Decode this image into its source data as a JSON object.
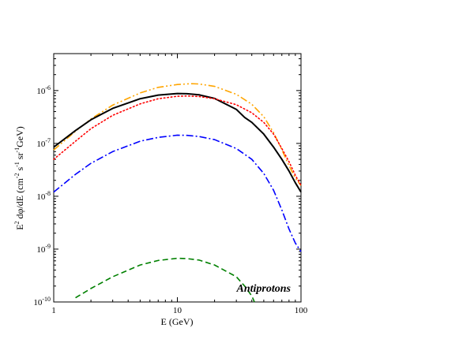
{
  "chart_data": {
    "type": "line",
    "title": "",
    "xlabel": "E (GeV)",
    "ylabel_parts": {
      "a": "E",
      "a_sup": "2",
      "b": " dφ/dE   (cm",
      "b_sup": "-2",
      "c": " s",
      "c_sup": "-1",
      "d": " sr",
      "d_sup": "-1",
      "e": "GeV)"
    },
    "x_scale": "log",
    "y_scale": "log",
    "xlim": [
      1,
      100
    ],
    "ylim": [
      1e-10,
      5e-06
    ],
    "x_ticks": [
      {
        "value": 1,
        "label": "1"
      },
      {
        "value": 10,
        "label": "10"
      },
      {
        "value": 100,
        "label": "100"
      }
    ],
    "y_ticks": [
      {
        "value": 1e-10,
        "base": "10",
        "exp": "-10"
      },
      {
        "value": 1e-09,
        "base": "10",
        "exp": "-9"
      },
      {
        "value": 1e-08,
        "base": "10",
        "exp": "-8"
      },
      {
        "value": 1e-07,
        "base": "10",
        "exp": "-7"
      },
      {
        "value": 1e-06,
        "base": "10",
        "exp": "-6"
      }
    ],
    "grid": false,
    "annotation": "Antiprotons",
    "series": [
      {
        "color": "#ffa500",
        "style": "dash-dot-dot",
        "x": [
          1,
          1.5,
          2,
          3,
          5,
          7,
          10,
          13,
          15,
          20,
          30,
          40,
          50,
          60,
          70,
          80,
          90,
          100
        ],
        "y": [
          7.5e-08,
          1.7e-07,
          2.9e-07,
          5.3e-07,
          9e-07,
          1.15e-06,
          1.3e-06,
          1.35e-06,
          1.33e-06,
          1.2e-06,
          8.5e-07,
          5.5e-07,
          3.2e-07,
          1.6e-07,
          7.6e-08,
          3.8e-08,
          2.2e-08,
          1.6e-08
        ]
      },
      {
        "color": "#000000",
        "style": "solid",
        "x": [
          1,
          1.5,
          2,
          3,
          5,
          7,
          10,
          12,
          15,
          20,
          30,
          35,
          40,
          50,
          60,
          70,
          80,
          90,
          100
        ],
        "y": [
          8.5e-08,
          1.75e-07,
          2.8e-07,
          4.6e-07,
          7e-07,
          8.2e-07,
          8.8e-07,
          8.7e-07,
          8.3e-07,
          7.1e-07,
          4.4e-07,
          3.1e-07,
          2.5e-07,
          1.5e-07,
          8.5e-08,
          5e-08,
          3e-08,
          1.8e-08,
          1.2e-08
        ]
      },
      {
        "color": "#ff0000",
        "style": "dotted",
        "x": [
          1,
          1.5,
          2,
          3,
          5,
          7,
          10,
          12,
          15,
          20,
          30,
          40,
          50,
          60,
          70,
          80,
          90,
          100
        ],
        "y": [
          5e-08,
          1.1e-07,
          1.9e-07,
          3.4e-07,
          5.6e-07,
          7e-07,
          7.8e-07,
          7.9e-07,
          7.7e-07,
          7e-07,
          5.4e-07,
          3.8e-07,
          2.5e-07,
          1.5e-07,
          8e-08,
          4.5e-08,
          2.5e-08,
          1.6e-08
        ]
      },
      {
        "color": "#0000ff",
        "style": "dash-dot",
        "x": [
          1,
          1.5,
          2,
          3,
          5,
          7,
          10,
          12,
          15,
          20,
          30,
          40,
          50,
          60,
          70,
          80,
          90,
          100
        ],
        "y": [
          1.2e-08,
          2.6e-08,
          4.2e-08,
          7e-08,
          1.1e-07,
          1.3e-07,
          1.43e-07,
          1.42e-07,
          1.35e-07,
          1.18e-07,
          8e-08,
          5e-08,
          2.7e-08,
          1.3e-08,
          5.5e-09,
          2.4e-09,
          1.3e-09,
          9e-10
        ]
      },
      {
        "color": "#008000",
        "style": "dashed",
        "x": [
          1.5,
          2,
          3,
          5,
          7,
          10,
          12,
          15,
          20,
          30,
          35,
          40,
          42
        ],
        "y": [
          1.2e-10,
          1.8e-10,
          3e-10,
          5e-10,
          6.1e-10,
          6.7e-10,
          6.6e-10,
          6.2e-10,
          5e-10,
          3e-10,
          2e-10,
          1.3e-10,
          1e-10
        ]
      }
    ]
  }
}
